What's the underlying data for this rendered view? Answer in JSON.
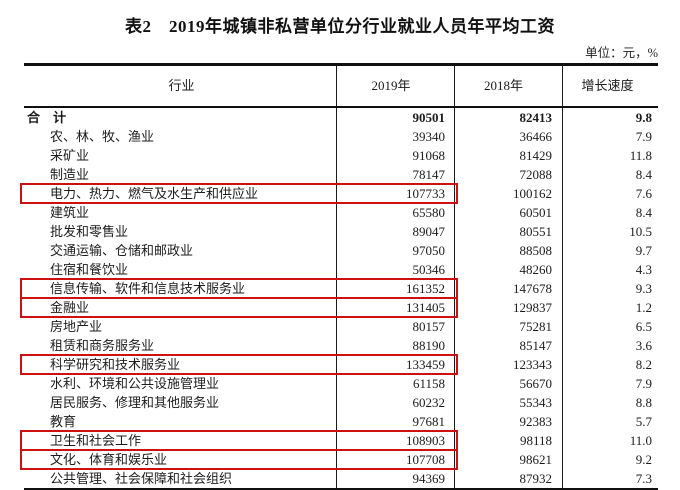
{
  "title": "表2　2019年城镇非私营单位分行业就业人员年平均工资",
  "unit_label": "单位：元，%",
  "colors": {
    "highlight_border": "#cc1111",
    "table_border": "#101010"
  },
  "table": {
    "columns": [
      "行业",
      "2019年",
      "2018年",
      "增长速度"
    ],
    "rows": [
      {
        "industry": "合　计",
        "y2019": "90501",
        "y2018": "82413",
        "growth": "9.8",
        "bold": true,
        "indent": false,
        "highlighted": false
      },
      {
        "industry": "农、林、牧、渔业",
        "y2019": "39340",
        "y2018": "36466",
        "growth": "7.9",
        "bold": false,
        "indent": true,
        "highlighted": false
      },
      {
        "industry": "采矿业",
        "y2019": "91068",
        "y2018": "81429",
        "growth": "11.8",
        "bold": false,
        "indent": true,
        "highlighted": false
      },
      {
        "industry": "制造业",
        "y2019": "78147",
        "y2018": "72088",
        "growth": "8.4",
        "bold": false,
        "indent": true,
        "highlighted": false
      },
      {
        "industry": "电力、热力、燃气及水生产和供应业",
        "y2019": "107733",
        "y2018": "100162",
        "growth": "7.6",
        "bold": false,
        "indent": true,
        "highlighted": true
      },
      {
        "industry": "建筑业",
        "y2019": "65580",
        "y2018": "60501",
        "growth": "8.4",
        "bold": false,
        "indent": true,
        "highlighted": false
      },
      {
        "industry": "批发和零售业",
        "y2019": "89047",
        "y2018": "80551",
        "growth": "10.5",
        "bold": false,
        "indent": true,
        "highlighted": false
      },
      {
        "industry": "交通运输、仓储和邮政业",
        "y2019": "97050",
        "y2018": "88508",
        "growth": "9.7",
        "bold": false,
        "indent": true,
        "highlighted": false
      },
      {
        "industry": "住宿和餐饮业",
        "y2019": "50346",
        "y2018": "48260",
        "growth": "4.3",
        "bold": false,
        "indent": true,
        "highlighted": false
      },
      {
        "industry": "信息传输、软件和信息技术服务业",
        "y2019": "161352",
        "y2018": "147678",
        "growth": "9.3",
        "bold": false,
        "indent": true,
        "highlighted": true
      },
      {
        "industry": "金融业",
        "y2019": "131405",
        "y2018": "129837",
        "growth": "1.2",
        "bold": false,
        "indent": true,
        "highlighted": true
      },
      {
        "industry": "房地产业",
        "y2019": "80157",
        "y2018": "75281",
        "growth": "6.5",
        "bold": false,
        "indent": true,
        "highlighted": false
      },
      {
        "industry": "租赁和商务服务业",
        "y2019": "88190",
        "y2018": "85147",
        "growth": "3.6",
        "bold": false,
        "indent": true,
        "highlighted": false
      },
      {
        "industry": "科学研究和技术服务业",
        "y2019": "133459",
        "y2018": "123343",
        "growth": "8.2",
        "bold": false,
        "indent": true,
        "highlighted": true
      },
      {
        "industry": "水利、环境和公共设施管理业",
        "y2019": "61158",
        "y2018": "56670",
        "growth": "7.9",
        "bold": false,
        "indent": true,
        "highlighted": false
      },
      {
        "industry": "居民服务、修理和其他服务业",
        "y2019": "60232",
        "y2018": "55343",
        "growth": "8.8",
        "bold": false,
        "indent": true,
        "highlighted": false
      },
      {
        "industry": "教育",
        "y2019": "97681",
        "y2018": "92383",
        "growth": "5.7",
        "bold": false,
        "indent": true,
        "highlighted": false
      },
      {
        "industry": "卫生和社会工作",
        "y2019": "108903",
        "y2018": "98118",
        "growth": "11.0",
        "bold": false,
        "indent": true,
        "highlighted": true
      },
      {
        "industry": "文化、体育和娱乐业",
        "y2019": "107708",
        "y2018": "98621",
        "growth": "9.2",
        "bold": false,
        "indent": true,
        "highlighted": true
      },
      {
        "industry": "公共管理、社会保障和社会组织",
        "y2019": "94369",
        "y2018": "87932",
        "growth": "7.3",
        "bold": false,
        "indent": true,
        "highlighted": false
      }
    ]
  }
}
